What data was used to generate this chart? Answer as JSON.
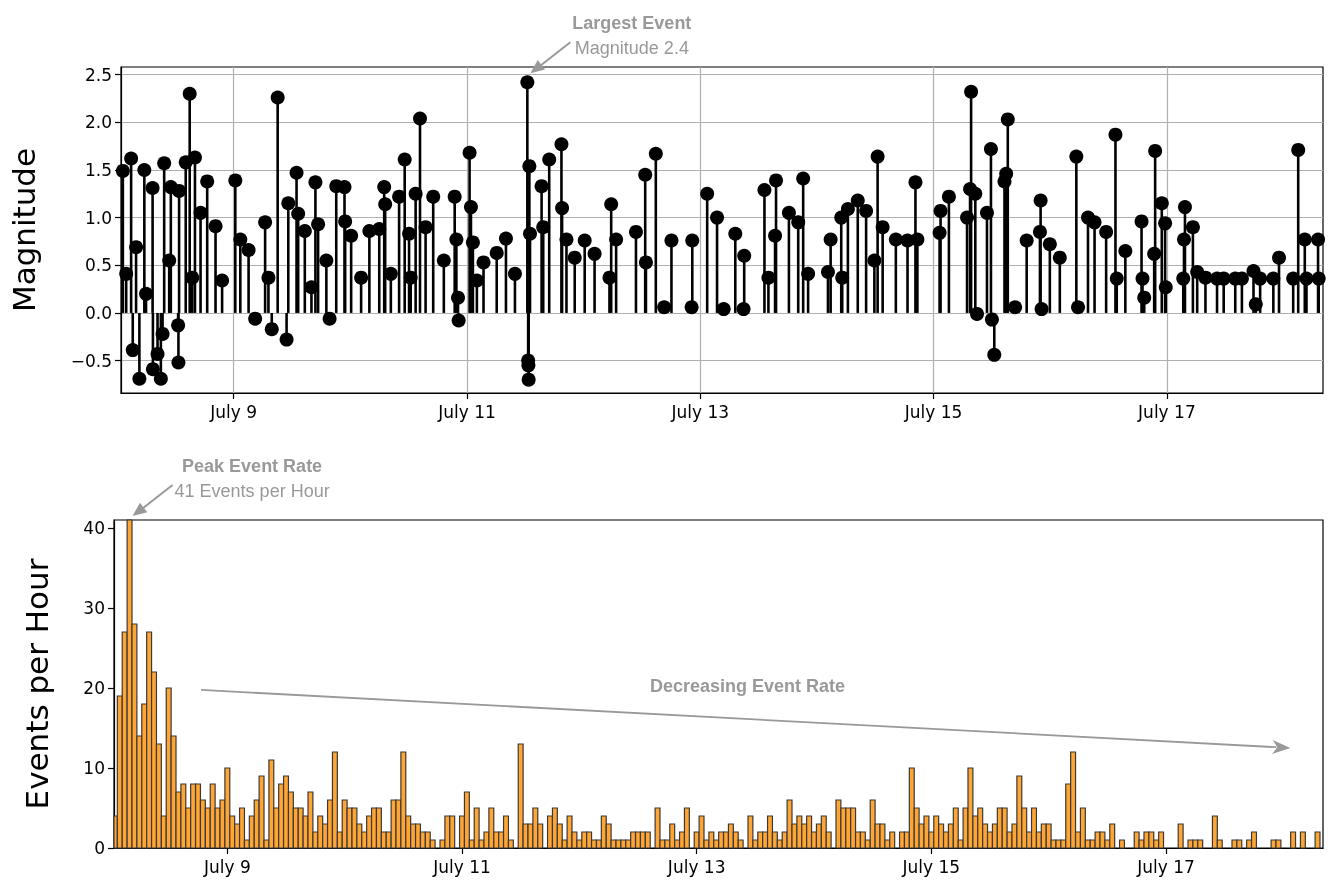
{
  "chart_data": [
    {
      "type": "lollipop",
      "ylabel": "Magnitude",
      "color": "#000000",
      "marker": "circle",
      "grid": true,
      "xlim": [
        "--07-08T00:49",
        "--07-18T08:07"
      ],
      "ylim": [
        -0.84,
        2.58
      ],
      "xticks": [
        {
          "value": "--07-09",
          "label": "July 9"
        },
        {
          "value": "--07-11",
          "label": "July 11"
        },
        {
          "value": "--07-13",
          "label": "July 13"
        },
        {
          "value": "--07-15",
          "label": "July 15"
        },
        {
          "value": "--07-17",
          "label": "July 17"
        }
      ],
      "yticks": [
        {
          "value": -0.5,
          "label": "−0.5"
        },
        {
          "value": 0,
          "label": "0.0"
        },
        {
          "value": 0.5,
          "label": "0.5"
        },
        {
          "value": 1,
          "label": "1.0"
        },
        {
          "value": 1.5,
          "label": "1.5"
        },
        {
          "value": 2,
          "label": "2.0"
        },
        {
          "value": 2.5,
          "label": "2.5"
        }
      ],
      "annotations": [
        {
          "text": "Largest Event\nMagnitude 2.4",
          "x": "--07-11T12:25",
          "y": 2.42
        }
      ],
      "x": [
        "--07-08T01:12",
        "--07-08T01:53",
        "--07-08T02:54",
        "--07-08T03:14",
        "--07-08T03:55",
        "--07-08T04:36",
        "--07-08T05:37",
        "--07-08T05:58",
        "--07-08T07:19",
        "--07-08T07:23",
        "--07-08T08:20",
        "--07-08T09:01",
        "--07-08T09:22",
        "--07-08T09:42",
        "--07-08T10:44",
        "--07-08T11:04",
        "--07-08T12:34",
        "--07-08T12:38",
        "--07-08T12:46",
        "--07-08T14:08",
        "--07-08T14:57",
        "--07-08T15:29",
        "--07-08T16:02",
        "--07-08T17:11",
        "--07-08T18:33",
        "--07-08T20:16",
        "--07-08T21:37",
        "--07-09T00:20",
        "--07-09T01:22",
        "--07-09T03:04",
        "--07-09T04:25",
        "--07-09T06:28",
        "--07-09T07:09",
        "--07-09T07:50",
        "--07-09T09:03",
        "--07-09T10:53",
        "--07-09T11:14",
        "--07-09T12:56",
        "--07-09T13:16",
        "--07-09T14:38",
        "--07-09T16:00",
        "--07-09T16:49",
        "--07-09T17:22",
        "--07-09T19:04",
        "--07-09T19:44",
        "--07-09T21:06",
        "--07-09T22:48",
        "--07-09T22:56",
        "--07-10T00:10",
        "--07-10T02:13",
        "--07-10T03:55",
        "--07-10T05:57",
        "--07-10T06:58",
        "--07-10T07:10",
        "--07-10T08:20",
        "--07-10T10:02",
        "--07-10T11:11",
        "--07-10T12:05",
        "--07-10T12:25",
        "--07-10T13:26",
        "--07-10T14:20",
        "--07-10T15:29",
        "--07-10T17:03",
        "--07-10T19:14",
        "--07-10T21:28",
        "--07-10T21:49",
        "--07-10T22:09",
        "--07-10T22:17",
        "--07-11T00:32",
        "--07-11T00:49",
        "--07-11T01:13",
        "--07-11T02:02",
        "--07-11T03:24",
        "--07-11T06:07",
        "--07-11T08:01",
        "--07-11T09:52",
        "--07-11T12:25",
        "--07-11T12:35",
        "--07-11T12:38",
        "--07-11T12:41",
        "--07-11T12:50",
        "--07-11T12:58",
        "--07-11T15:21",
        "--07-11T15:41",
        "--07-11T16:55",
        "--07-11T19:26",
        "--07-11T19:34",
        "--07-11T20:28",
        "--07-11T22:10",
        "--07-12T00:13",
        "--07-12T02:15",
        "--07-12T05:19",
        "--07-12T05:40",
        "--07-12T06:41",
        "--07-12T10:46",
        "--07-12T12:40",
        "--07-12T12:49",
        "--07-12T14:51",
        "--07-12T16:34",
        "--07-12T18:04",
        "--07-12T22:13",
        "--07-12T22:21",
        "--07-13T01:25",
        "--07-13T03:27",
        "--07-13T04:49",
        "--07-13T07:12",
        "--07-13T08:54",
        "--07-13T09:02",
        "--07-13T13:12",
        "--07-13T14:01",
        "--07-13T15:23",
        "--07-13T15:35",
        "--07-13T18:14",
        "--07-13T20:09",
        "--07-13T21:10",
        "--07-13T22:11",
        "--07-14T02:16",
        "--07-14T02:49",
        "--07-14T05:00",
        "--07-14T05:12",
        "--07-14T06:22",
        "--07-14T08:24",
        "--07-14T10:07",
        "--07-14T11:49",
        "--07-14T12:29",
        "--07-14T13:31",
        "--07-14T16:14",
        "--07-14T18:38",
        "--07-14T20:16",
        "--07-14T20:40",
        "--07-15T01:14",
        "--07-15T01:26",
        "--07-15T03:09",
        "--07-15T06:53",
        "--07-15T07:30",
        "--07-15T07:43",
        "--07-15T08:35",
        "--07-15T08:56",
        "--07-15T10:59",
        "--07-15T11:48",
        "--07-15T12:00",
        "--07-15T12:29",
        "--07-15T14:35",
        "--07-15T14:56",
        "--07-15T15:16",
        "--07-15T16:46",
        "--07-15T19:09",
        "--07-15T21:53",
        "--07-15T22:01",
        "--07-15T22:13",
        "--07-15T23:55",
        "--07-16T01:58",
        "--07-16T05:22",
        "--07-16T05:43",
        "--07-16T07:46",
        "--07-16T09:07",
        "--07-16T11:30",
        "--07-16T13:25",
        "--07-16T13:41",
        "--07-16T15:27",
        "--07-16T18:47",
        "--07-16T18:59",
        "--07-16T19:20",
        "--07-16T21:23",
        "--07-16T21:35",
        "--07-16T22:57",
        "--07-16T23:38",
        "--07-16T23:46",
        "--07-17T03:22",
        "--07-17T03:31",
        "--07-17T03:43",
        "--07-17T05:21",
        "--07-17T06:14",
        "--07-17T07:56",
        "--07-17T10:19",
        "--07-17T11:41",
        "--07-17T14:04",
        "--07-17T15:26",
        "--07-17T17:49",
        "--07-17T18:17",
        "--07-17T19:11",
        "--07-17T21:54",
        "--07-17T23:04",
        "--07-18T01:59",
        "--07-18T03:01",
        "--07-18T04:22",
        "--07-18T04:43",
        "--07-18T07:06",
        "--07-18T07:14"
      ],
      "values": [
        1.49,
        0.41,
        1.62,
        -0.39,
        0.69,
        -0.69,
        1.5,
        0.2,
        1.31,
        -0.59,
        -0.43,
        -0.69,
        -0.22,
        1.57,
        0.55,
        1.32,
        -0.13,
        -0.52,
        1.28,
        1.58,
        2.3,
        0.37,
        1.63,
        1.05,
        1.38,
        0.91,
        0.34,
        1.39,
        0.77,
        0.66,
        -0.06,
        0.95,
        0.37,
        -0.17,
        2.26,
        -0.28,
        1.15,
        1.47,
        1.04,
        0.86,
        0.27,
        1.37,
        0.93,
        0.55,
        -0.06,
        1.33,
        1.32,
        0.96,
        0.81,
        0.37,
        0.86,
        0.88,
        1.32,
        1.14,
        0.41,
        1.22,
        1.61,
        0.83,
        0.37,
        1.25,
        2.04,
        0.9,
        1.22,
        0.55,
        1.22,
        0.77,
        0.16,
        -0.08,
        1.68,
        1.11,
        0.74,
        0.34,
        0.53,
        0.63,
        0.78,
        0.41,
        2.42,
        -0.5,
        -0.55,
        -0.7,
        1.54,
        0.83,
        1.33,
        0.9,
        1.61,
        1.77,
        1.1,
        0.77,
        0.58,
        0.76,
        0.62,
        0.37,
        1.14,
        0.77,
        0.85,
        1.45,
        0.53,
        1.67,
        0.06,
        0.76,
        0.06,
        0.76,
        1.25,
        1.0,
        0.04,
        0.83,
        0.04,
        0.6,
        1.29,
        0.37,
        0.81,
        1.39,
        1.05,
        0.95,
        1.41,
        0.41,
        0.43,
        0.77,
        1.0,
        0.37,
        1.09,
        1.18,
        1.07,
        0.55,
        1.64,
        0.9,
        0.77,
        0.76,
        1.37,
        0.77,
        0.84,
        1.07,
        1.22,
        1.0,
        1.3,
        2.32,
        1.25,
        -0.01,
        1.05,
        1.72,
        -0.07,
        -0.44,
        1.38,
        1.46,
        2.03,
        0.06,
        0.76,
        0.85,
        1.18,
        0.04,
        0.72,
        0.58,
        1.64,
        0.06,
        1.0,
        0.95,
        0.85,
        1.87,
        0.36,
        0.65,
        0.96,
        0.36,
        0.16,
        0.62,
        1.7,
        1.15,
        0.94,
        0.27,
        0.36,
        0.77,
        1.11,
        0.9,
        0.43,
        0.37,
        0.36,
        0.36,
        0.36,
        0.36,
        0.44,
        0.09,
        0.36,
        0.36,
        0.58,
        0.36,
        1.71,
        0.77,
        0.36,
        0.77,
        0.36
      ]
    },
    {
      "type": "histogram",
      "ylabel": "Events per Hour",
      "xlim": [
        "--07-08T00:49",
        "--07-18T08:07"
      ],
      "ylim": [
        0,
        41
      ],
      "xticks": [
        {
          "value": "--07-09",
          "label": "July 9"
        },
        {
          "value": "--07-11",
          "label": "July 11"
        },
        {
          "value": "--07-13",
          "label": "July 13"
        },
        {
          "value": "--07-15",
          "label": "July 15"
        },
        {
          "value": "--07-17",
          "label": "July 17"
        }
      ],
      "yticks": [
        0,
        10,
        20,
        30,
        40
      ],
      "annotations": [
        {
          "text": "Peak Event Rate\n41 Events per Hour",
          "x": "--07-08T04:00",
          "y": 41
        },
        "Decreasing Event Rate"
      ],
      "bins": [
        "--07-08T00:30",
        "--07-08T01:30",
        "--07-08T02:30",
        "--07-08T03:30",
        "--07-08T04:30",
        "--07-08T05:30",
        "--07-08T06:30",
        "--07-08T07:30",
        "--07-08T08:30",
        "--07-08T09:30",
        "--07-08T10:30",
        "--07-08T11:30",
        "--07-08T12:30",
        "--07-08T13:30",
        "--07-08T14:30",
        "--07-08T15:30",
        "--07-08T16:30",
        "--07-08T17:30",
        "--07-08T18:30",
        "--07-08T19:30",
        "--07-08T20:30",
        "--07-08T21:30",
        "--07-08T22:30",
        "--07-08T23:30",
        "--07-09T00:30",
        "--07-09T01:30",
        "--07-09T02:30",
        "--07-09T03:30",
        "--07-09T04:30",
        "--07-09T05:30",
        "--07-09T06:30",
        "--07-09T07:30",
        "--07-09T08:30",
        "--07-09T09:30",
        "--07-09T10:30",
        "--07-09T11:30",
        "--07-09T12:30",
        "--07-09T13:30",
        "--07-09T14:30",
        "--07-09T15:30",
        "--07-09T16:30",
        "--07-09T17:30",
        "--07-09T18:30",
        "--07-09T19:30",
        "--07-09T20:30",
        "--07-09T21:30",
        "--07-09T22:30",
        "--07-09T23:30",
        "--07-10T00:30",
        "--07-10T01:30",
        "--07-10T02:30",
        "--07-10T03:30",
        "--07-10T04:30",
        "--07-10T05:30",
        "--07-10T06:30",
        "--07-10T07:30",
        "--07-10T08:30",
        "--07-10T09:30",
        "--07-10T10:30",
        "--07-10T11:30",
        "--07-10T12:30",
        "--07-10T13:30",
        "--07-10T14:30",
        "--07-10T15:30",
        "--07-10T16:30",
        "--07-10T17:30",
        "--07-10T18:30",
        "--07-10T19:30",
        "--07-10T20:30",
        "--07-10T21:30",
        "--07-10T22:30",
        "--07-10T23:30",
        "--07-11T00:30",
        "--07-11T01:30",
        "--07-11T02:30",
        "--07-11T03:30",
        "--07-11T04:30",
        "--07-11T05:30",
        "--07-11T06:30",
        "--07-11T07:30",
        "--07-11T08:30",
        "--07-11T09:30",
        "--07-11T10:30",
        "--07-11T11:30",
        "--07-11T12:30",
        "--07-11T13:30",
        "--07-11T14:30",
        "--07-11T15:30",
        "--07-11T16:30",
        "--07-11T17:30",
        "--07-11T18:30",
        "--07-11T19:30",
        "--07-11T20:30",
        "--07-11T21:30",
        "--07-11T22:30",
        "--07-11T23:30",
        "--07-12T00:30",
        "--07-12T01:30",
        "--07-12T02:30",
        "--07-12T03:30",
        "--07-12T04:30",
        "--07-12T05:30",
        "--07-12T06:30",
        "--07-12T07:30",
        "--07-12T08:30",
        "--07-12T09:30",
        "--07-12T10:30",
        "--07-12T11:30",
        "--07-12T12:30",
        "--07-12T13:30",
        "--07-12T14:30",
        "--07-12T15:30",
        "--07-12T16:30",
        "--07-12T17:30",
        "--07-12T18:30",
        "--07-12T19:30",
        "--07-12T20:30",
        "--07-12T21:30",
        "--07-12T22:30",
        "--07-12T23:30",
        "--07-13T00:30",
        "--07-13T01:30",
        "--07-13T02:30",
        "--07-13T03:30",
        "--07-13T04:30",
        "--07-13T05:30",
        "--07-13T06:30",
        "--07-13T07:30",
        "--07-13T08:30",
        "--07-13T09:30",
        "--07-13T10:30",
        "--07-13T11:30",
        "--07-13T12:30",
        "--07-13T13:30",
        "--07-13T14:30",
        "--07-13T15:30",
        "--07-13T16:30",
        "--07-13T17:30",
        "--07-13T18:30",
        "--07-13T19:30",
        "--07-13T20:30",
        "--07-13T21:30",
        "--07-13T22:30",
        "--07-13T23:30",
        "--07-14T00:30",
        "--07-14T01:30",
        "--07-14T02:30",
        "--07-14T03:30",
        "--07-14T04:30",
        "--07-14T05:30",
        "--07-14T06:30",
        "--07-14T07:30",
        "--07-14T08:30",
        "--07-14T09:30",
        "--07-14T10:30",
        "--07-14T11:30",
        "--07-14T12:30",
        "--07-14T13:30",
        "--07-14T14:30",
        "--07-14T15:30",
        "--07-14T16:30",
        "--07-14T17:30",
        "--07-14T18:30",
        "--07-14T19:30",
        "--07-14T20:30",
        "--07-14T21:30",
        "--07-14T22:30",
        "--07-14T23:30",
        "--07-15T00:30",
        "--07-15T01:30",
        "--07-15T02:30",
        "--07-15T03:30",
        "--07-15T04:30",
        "--07-15T05:30",
        "--07-15T06:30",
        "--07-15T07:30",
        "--07-15T08:30",
        "--07-15T09:30",
        "--07-15T10:30",
        "--07-15T11:30",
        "--07-15T12:30",
        "--07-15T13:30",
        "--07-15T14:30",
        "--07-15T15:30",
        "--07-15T16:30",
        "--07-15T17:30",
        "--07-15T18:30",
        "--07-15T19:30",
        "--07-15T20:30",
        "--07-15T21:30",
        "--07-15T22:30",
        "--07-15T23:30",
        "--07-16T00:30",
        "--07-16T01:30",
        "--07-16T02:30",
        "--07-16T03:30",
        "--07-16T04:30",
        "--07-16T05:30",
        "--07-16T06:30",
        "--07-16T07:30",
        "--07-16T08:30",
        "--07-16T09:30",
        "--07-16T10:30",
        "--07-16T11:30",
        "--07-16T12:30",
        "--07-16T13:30",
        "--07-16T14:30",
        "--07-16T15:30",
        "--07-16T16:30",
        "--07-16T17:30",
        "--07-16T18:30",
        "--07-16T19:30",
        "--07-16T20:30",
        "--07-16T21:30",
        "--07-16T22:30",
        "--07-16T23:30",
        "--07-17T00:30",
        "--07-17T01:30",
        "--07-17T02:30",
        "--07-17T03:30",
        "--07-17T04:30",
        "--07-17T05:30",
        "--07-17T06:30",
        "--07-17T07:30",
        "--07-17T08:30",
        "--07-17T09:30",
        "--07-17T10:30",
        "--07-17T11:30",
        "--07-17T12:30",
        "--07-17T13:30",
        "--07-17T14:30",
        "--07-17T15:30",
        "--07-17T16:30",
        "--07-17T17:30",
        "--07-17T18:30",
        "--07-17T19:30",
        "--07-17T20:30",
        "--07-17T21:30",
        "--07-17T22:30",
        "--07-17T23:30",
        "--07-18T00:30",
        "--07-18T01:30",
        "--07-18T02:30",
        "--07-18T03:30",
        "--07-18T04:30",
        "--07-18T05:30",
        "--07-18T06:30",
        "--07-18T07:30",
        "--07-18T08:30"
      ],
      "color": "#ffa533",
      "values": [
        4,
        19,
        27,
        41,
        28,
        14,
        18,
        27,
        22,
        13,
        4,
        20,
        14,
        7,
        8,
        5,
        8,
        8,
        6,
        5,
        8,
        5,
        6,
        10,
        4,
        3,
        5,
        1,
        4,
        6,
        9,
        1,
        11,
        5,
        8,
        9,
        7,
        5,
        5,
        4,
        7,
        2,
        4,
        3,
        6,
        12,
        2,
        6,
        5,
        5,
        3,
        2,
        4,
        5,
        5,
        2,
        2,
        6,
        6,
        12,
        4,
        3,
        3,
        2,
        2,
        1,
        0,
        1,
        4,
        4,
        0,
        4,
        7,
        1,
        5,
        1,
        2,
        5,
        2,
        2,
        4,
        1,
        0,
        13,
        3,
        3,
        5,
        3,
        0,
        4,
        5,
        3,
        1,
        4,
        2,
        1,
        2,
        2,
        1,
        1,
        4,
        3,
        1,
        1,
        1,
        1,
        2,
        2,
        2,
        2,
        0,
        5,
        1,
        1,
        3,
        1,
        2,
        5,
        0,
        2,
        4,
        1,
        2,
        1,
        2,
        2,
        3,
        2,
        1,
        0,
        4,
        1,
        2,
        2,
        4,
        2,
        1,
        2,
        6,
        3,
        4,
        3,
        4,
        2,
        3,
        4,
        2,
        0,
        6,
        5,
        5,
        5,
        2,
        2,
        1,
        6,
        3,
        3,
        1,
        2,
        0,
        2,
        2,
        10,
        5,
        3,
        4,
        2,
        4,
        3,
        2,
        3,
        5,
        1,
        5,
        10,
        4,
        5,
        3,
        2,
        3,
        5,
        5,
        2,
        3,
        9,
        5,
        2,
        5,
        2,
        3,
        3,
        1,
        1,
        1,
        8,
        12,
        2,
        5,
        1,
        1,
        2,
        2,
        1,
        3,
        0,
        1,
        0,
        0,
        2,
        1,
        2,
        2,
        1,
        2,
        0,
        0,
        0,
        3,
        0,
        1,
        1,
        1,
        0,
        0,
        4,
        1,
        0,
        0,
        1,
        1,
        0,
        1,
        2,
        0,
        0,
        0,
        1,
        1,
        0,
        0,
        2,
        0,
        2,
        0,
        0,
        2,
        0
      ]
    }
  ]
}
